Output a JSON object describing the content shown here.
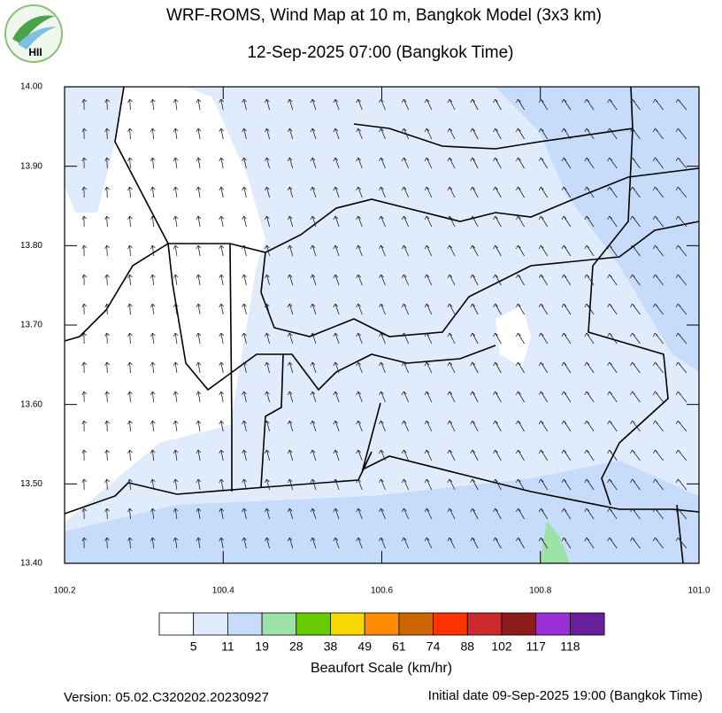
{
  "header": {
    "logo": "HII",
    "title": "WRF-ROMS, Wind Map at 10 m, Bangkok Model (3x3 km)",
    "subtitle": "12-Sep-2025 07:00 (Bangkok Time)"
  },
  "map": {
    "xlim": [
      100.2,
      101
    ],
    "ylim": [
      13.4,
      14
    ],
    "xticks": [
      100.2,
      100.4,
      100.6,
      100.8,
      {
        "value": 101,
        "label": "101.0"
      }
    ],
    "yticks": [
      {
        "value": 13.4,
        "label": "13.40"
      },
      {
        "value": 13.5,
        "label": "13.50"
      },
      {
        "value": 13.6,
        "label": "13.60"
      },
      {
        "value": 13.7,
        "label": "13.70"
      },
      {
        "value": 13.8,
        "label": "13.80"
      },
      {
        "value": 13.9,
        "label": "13.90"
      },
      {
        "value": 14,
        "label": "14.00"
      }
    ]
  },
  "legend": {
    "title": "Beaufort Scale (km/hr)",
    "colors": [
      "#ffffff",
      "#e0ecfb",
      "#c6dcfa",
      "#9de3a8",
      "#66cc00",
      "#f5d800",
      "#ff8c00",
      "#cc6600",
      "#ff3300",
      "#cc2a2a",
      "#8b1a1a",
      "#9b30d9",
      "#6a1f9a"
    ],
    "labels": [
      5,
      11,
      19,
      28,
      38,
      49,
      61,
      74,
      88,
      102,
      117,
      118
    ]
  },
  "footer": {
    "version": "Version: 05.02.C320202.20230927",
    "initial": "Initial date 09-Sep-2025 19:00 (Bangkok Time)"
  }
}
